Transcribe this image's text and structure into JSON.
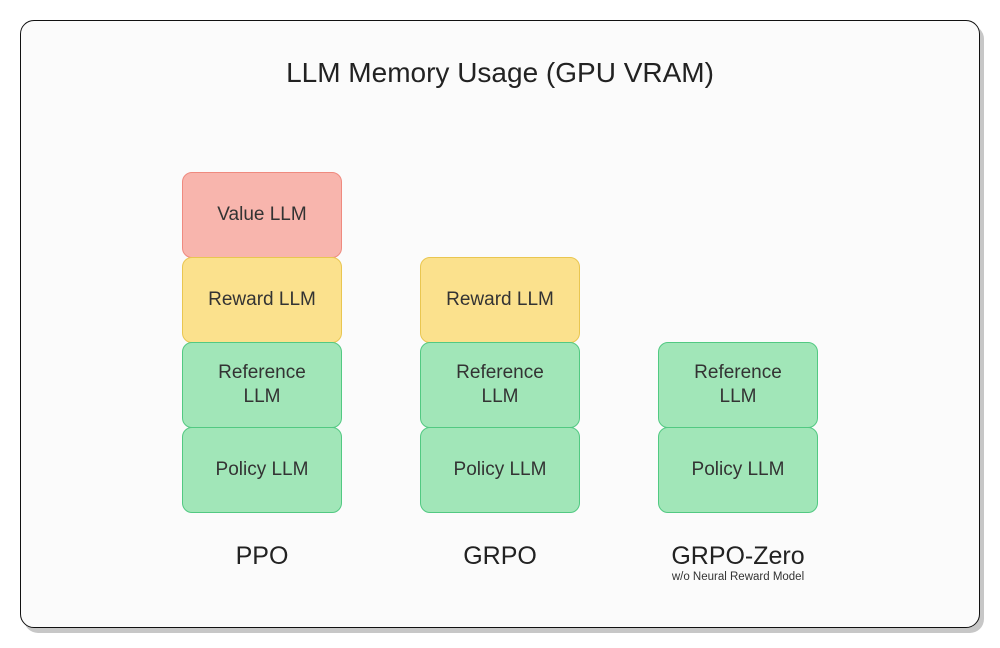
{
  "chart": {
    "type": "stacked-bar",
    "title": "LLM Memory Usage (GPU VRAM)",
    "title_fontsize": 28,
    "title_color": "#222222",
    "background_color": "#fbfbfb",
    "card_border_color": "#111111",
    "card_border_radius": 14,
    "card_shadow": "4px 5px 0 0 rgba(0,0,0,0.22)",
    "segment_width": 160,
    "segment_height": 86,
    "segment_border_radius": 10,
    "segment_fontsize": 19,
    "category_fontsize": 25,
    "column_gap": 78,
    "palette": {
      "green": {
        "fill": "#a1e6b8",
        "border": "#52c982"
      },
      "yellow": {
        "fill": "#fbe18d",
        "border": "#e9c650"
      },
      "red": {
        "fill": "#f8b5ad",
        "border": "#ef8a7f"
      }
    },
    "categories": [
      {
        "label": "PPO",
        "sublabel": "",
        "segments": [
          {
            "label": "Policy LLM",
            "color": "green"
          },
          {
            "label": "Reference LLM",
            "color": "green"
          },
          {
            "label": "Reward LLM",
            "color": "yellow"
          },
          {
            "label": "Value LLM",
            "color": "red"
          }
        ]
      },
      {
        "label": "GRPO",
        "sublabel": "",
        "segments": [
          {
            "label": "Policy LLM",
            "color": "green"
          },
          {
            "label": "Reference LLM",
            "color": "green"
          },
          {
            "label": "Reward LLM",
            "color": "yellow"
          }
        ]
      },
      {
        "label": "GRPO-Zero",
        "sublabel": "w/o Neural Reward Model",
        "segments": [
          {
            "label": "Policy LLM",
            "color": "green"
          },
          {
            "label": "Reference LLM",
            "color": "green"
          }
        ]
      }
    ]
  }
}
